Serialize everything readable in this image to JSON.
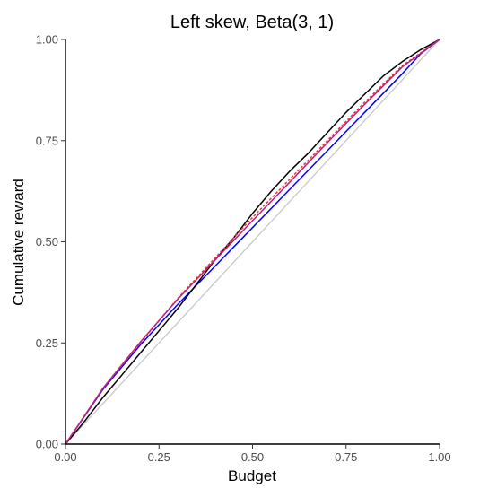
{
  "chart_data": {
    "type": "line",
    "title": "Left skew, Beta(3, 1)",
    "xlabel": "Budget",
    "ylabel": "Cumulative reward",
    "xlim": [
      0,
      1
    ],
    "ylim": [
      0,
      1
    ],
    "x_ticks": [
      "0.00",
      "0.25",
      "0.50",
      "0.75",
      "1.00"
    ],
    "y_ticks": [
      "0.00",
      "0.25",
      "0.50",
      "0.75",
      "1.00"
    ],
    "grid": false,
    "legend": "none",
    "series": [
      {
        "color": "#c8c8c8",
        "dash": "solid",
        "x": [
          0,
          1
        ],
        "y": [
          0,
          1
        ]
      },
      {
        "color": "#0000ff",
        "dash": "solid",
        "x": [
          0,
          0.1,
          0.2,
          0.3,
          0.4,
          0.5,
          0.6,
          0.7,
          0.8,
          0.9,
          0.95,
          1.0
        ],
        "y": [
          0,
          0.135,
          0.245,
          0.345,
          0.44,
          0.535,
          0.63,
          0.725,
          0.82,
          0.915,
          0.965,
          1.0
        ]
      },
      {
        "color": "#000000",
        "dash": "solid",
        "x": [
          0,
          0.05,
          0.1,
          0.15,
          0.2,
          0.25,
          0.3,
          0.35,
          0.4,
          0.45,
          0.5,
          0.55,
          0.6,
          0.65,
          0.7,
          0.75,
          0.8,
          0.85,
          0.9,
          0.95,
          1.0
        ],
        "y": [
          0,
          0.055,
          0.115,
          0.17,
          0.225,
          0.28,
          0.335,
          0.395,
          0.455,
          0.51,
          0.57,
          0.625,
          0.675,
          0.72,
          0.77,
          0.82,
          0.865,
          0.91,
          0.945,
          0.975,
          1.0
        ]
      },
      {
        "color": "#e8383d",
        "dash": "dashed",
        "x": [
          0,
          0.1,
          0.2,
          0.3,
          0.4,
          0.5,
          0.6,
          0.7,
          0.8,
          0.9,
          1.0
        ],
        "y": [
          0,
          0.137,
          0.25,
          0.36,
          0.46,
          0.56,
          0.655,
          0.75,
          0.845,
          0.935,
          1.0
        ]
      },
      {
        "color": "#c21f7a",
        "dash": "solid",
        "x": [
          0,
          0.1,
          0.2,
          0.3,
          0.4,
          0.5,
          0.6,
          0.7,
          0.8,
          0.9,
          1.0
        ],
        "y": [
          0,
          0.138,
          0.252,
          0.358,
          0.455,
          0.552,
          0.648,
          0.745,
          0.84,
          0.932,
          1.0
        ]
      }
    ]
  }
}
